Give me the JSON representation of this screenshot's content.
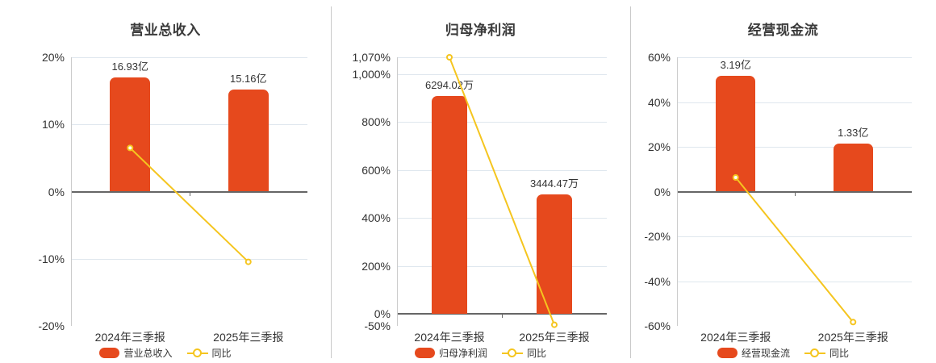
{
  "colors": {
    "bar": "#e6491d",
    "line": "#f5c51f",
    "grid": "#dfe7ee",
    "zero_axis": "#666666",
    "y_axis_line": "#cccccc",
    "text": "#333333",
    "title": "#3b3b3b",
    "divider": "#c9c9c9",
    "background": "#ffffff"
  },
  "chart_data": [
    {
      "type": "bar+line",
      "title": "营业总收入",
      "categories": [
        "2024年三季报",
        "2025年三季报"
      ],
      "bars": {
        "name": "营业总收入",
        "unit": "亿",
        "values": [
          16.93,
          15.16
        ],
        "labels": [
          "16.93亿",
          "15.16亿"
        ]
      },
      "line": {
        "name": "同比",
        "unit": "%",
        "values": [
          6.5,
          -10.46
        ]
      },
      "y_axis_pct": {
        "min": -20,
        "max": 20,
        "ticks": [
          {
            "value": 20,
            "label": "20%"
          },
          {
            "value": 10,
            "label": "10%"
          },
          {
            "value": 0,
            "label": "0%"
          },
          {
            "value": -10,
            "label": "-10%"
          },
          {
            "value": -20,
            "label": "-20%"
          }
        ]
      },
      "bar_axis_max": 19.92,
      "grid": true,
      "legend_position": "bottom"
    },
    {
      "type": "bar+line",
      "title": "归母净利润",
      "categories": [
        "2024年三季报",
        "2025年三季报"
      ],
      "bars": {
        "name": "归母净利润",
        "unit": "万",
        "values": [
          6294.02,
          3444.47
        ],
        "labels": [
          "6294.02万",
          "3444.47万"
        ]
      },
      "line": {
        "name": "同比",
        "unit": "%",
        "values": [
          1070,
          -45.27
        ]
      },
      "y_axis_pct": {
        "min": -50,
        "max": 1070,
        "ticks": [
          {
            "value": 1070,
            "label": "1,070%"
          },
          {
            "value": 1000,
            "label": "1,000%"
          },
          {
            "value": 800,
            "label": "800%"
          },
          {
            "value": 600,
            "label": "600%"
          },
          {
            "value": 400,
            "label": "400%"
          },
          {
            "value": 200,
            "label": "200%"
          },
          {
            "value": 0,
            "label": "0%"
          },
          {
            "value": -50,
            "label": "-50%"
          }
        ]
      },
      "bar_axis_max": 7400,
      "grid": true,
      "legend_position": "bottom"
    },
    {
      "type": "bar+line",
      "title": "经营现金流",
      "categories": [
        "2024年三季报",
        "2025年三季报"
      ],
      "bars": {
        "name": "经营现金流",
        "unit": "亿",
        "values": [
          3.19,
          1.33
        ],
        "labels": [
          "3.19亿",
          "1.33亿"
        ]
      },
      "line": {
        "name": "同比",
        "unit": "%",
        "values": [
          6.3,
          -58.31
        ]
      },
      "y_axis_pct": {
        "min": -60,
        "max": 60,
        "ticks": [
          {
            "value": 60,
            "label": "60%"
          },
          {
            "value": 40,
            "label": "40%"
          },
          {
            "value": 20,
            "label": "20%"
          },
          {
            "value": 0,
            "label": "0%"
          },
          {
            "value": -20,
            "label": "-20%"
          },
          {
            "value": -40,
            "label": "-40%"
          },
          {
            "value": -60,
            "label": "-60%"
          }
        ]
      },
      "bar_axis_max": 3.7,
      "grid": true,
      "legend_position": "bottom"
    }
  ]
}
